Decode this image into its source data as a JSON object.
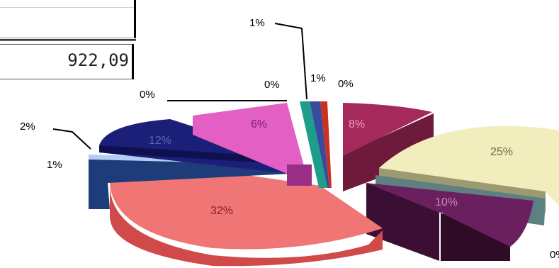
{
  "table": {
    "value": "922,09"
  },
  "chart_data": {
    "type": "pie",
    "title": "",
    "legend": "none",
    "slices": [
      {
        "label": "8%",
        "value": 8,
        "color": "#a5295a"
      },
      {
        "label": "25%",
        "value": 25,
        "color": "#f2edbd"
      },
      {
        "label": "0%",
        "value": 0.4,
        "color": "#4e6060"
      },
      {
        "label": "10%",
        "value": 10,
        "color": "#6a1f5e"
      },
      {
        "label": "32%",
        "value": 32,
        "color": "#f06b6b"
      },
      {
        "label": "1%",
        "value": 1,
        "color": "#9db8e0"
      },
      {
        "label": "2%",
        "value": 2,
        "color": "#1e3c7a"
      },
      {
        "label": "12%",
        "value": 12,
        "color": "#1c1f78"
      },
      {
        "label": "0%",
        "value": 0.4,
        "color": "#7a7a7a"
      },
      {
        "label": "6%",
        "value": 6,
        "color": "#e35fc4"
      },
      {
        "label": "0%",
        "value": 0.4,
        "color": "#8a3290"
      },
      {
        "label": "1%",
        "value": 1,
        "color": "#1e9e8a"
      },
      {
        "label": "1%",
        "value": 1,
        "color": "#3a4a9e"
      },
      {
        "label": "0%",
        "value": 0.4,
        "color": "#c8321e"
      }
    ]
  }
}
